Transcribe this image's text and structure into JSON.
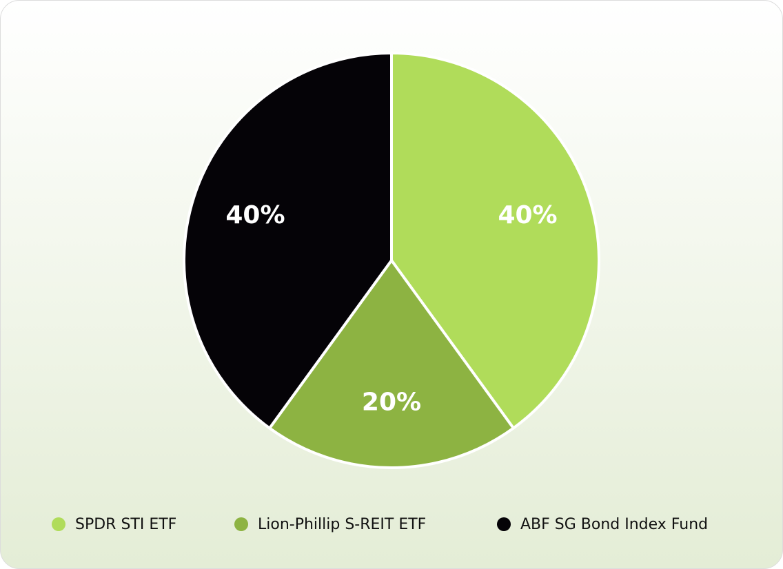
{
  "chart_data": {
    "type": "pie",
    "categories": [
      "SPDR STI ETF",
      "Lion-Phillip S-REIT ETF",
      "ABF SG Bond Index Fund"
    ],
    "values": [
      40,
      20,
      40
    ],
    "value_labels": [
      "40%",
      "20%",
      "40%"
    ],
    "colors": [
      "#b0dc5a",
      "#8db342",
      "#050307"
    ],
    "legend": "bottom"
  }
}
